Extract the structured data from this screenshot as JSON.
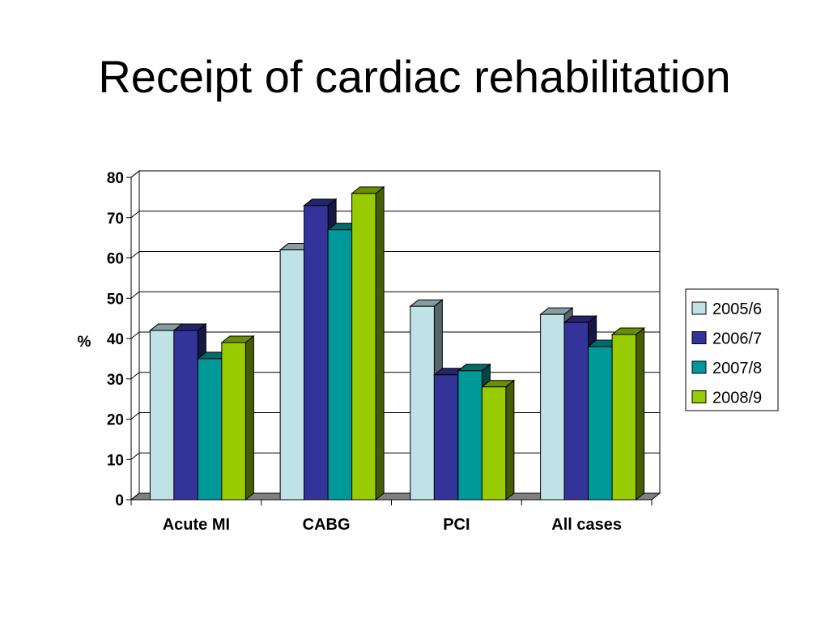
{
  "slide": {
    "title": "Receipt of cardiac rehabilitation"
  },
  "colors": {
    "2005/6": "#bfe2e6",
    "2006/7": "#333399",
    "2007/8": "#009999",
    "2008/9": "#99cc00",
    "floor": "#808080"
  },
  "chart_data": {
    "type": "bar",
    "title": "",
    "xlabel": "",
    "ylabel": "%",
    "ylim": [
      0,
      80
    ],
    "yticks": [
      0,
      10,
      20,
      30,
      40,
      50,
      60,
      70,
      80
    ],
    "grid": true,
    "legend_position": "right",
    "categories": [
      "Acute MI",
      "CABG",
      "PCI",
      "All cases"
    ],
    "series": [
      {
        "name": "2005/6",
        "values": [
          42,
          62,
          48,
          46
        ]
      },
      {
        "name": "2006/7",
        "values": [
          42,
          73,
          31,
          44
        ]
      },
      {
        "name": "2007/8",
        "values": [
          35,
          67,
          32,
          38
        ]
      },
      {
        "name": "2008/9",
        "values": [
          39,
          76,
          28,
          41
        ]
      }
    ]
  }
}
